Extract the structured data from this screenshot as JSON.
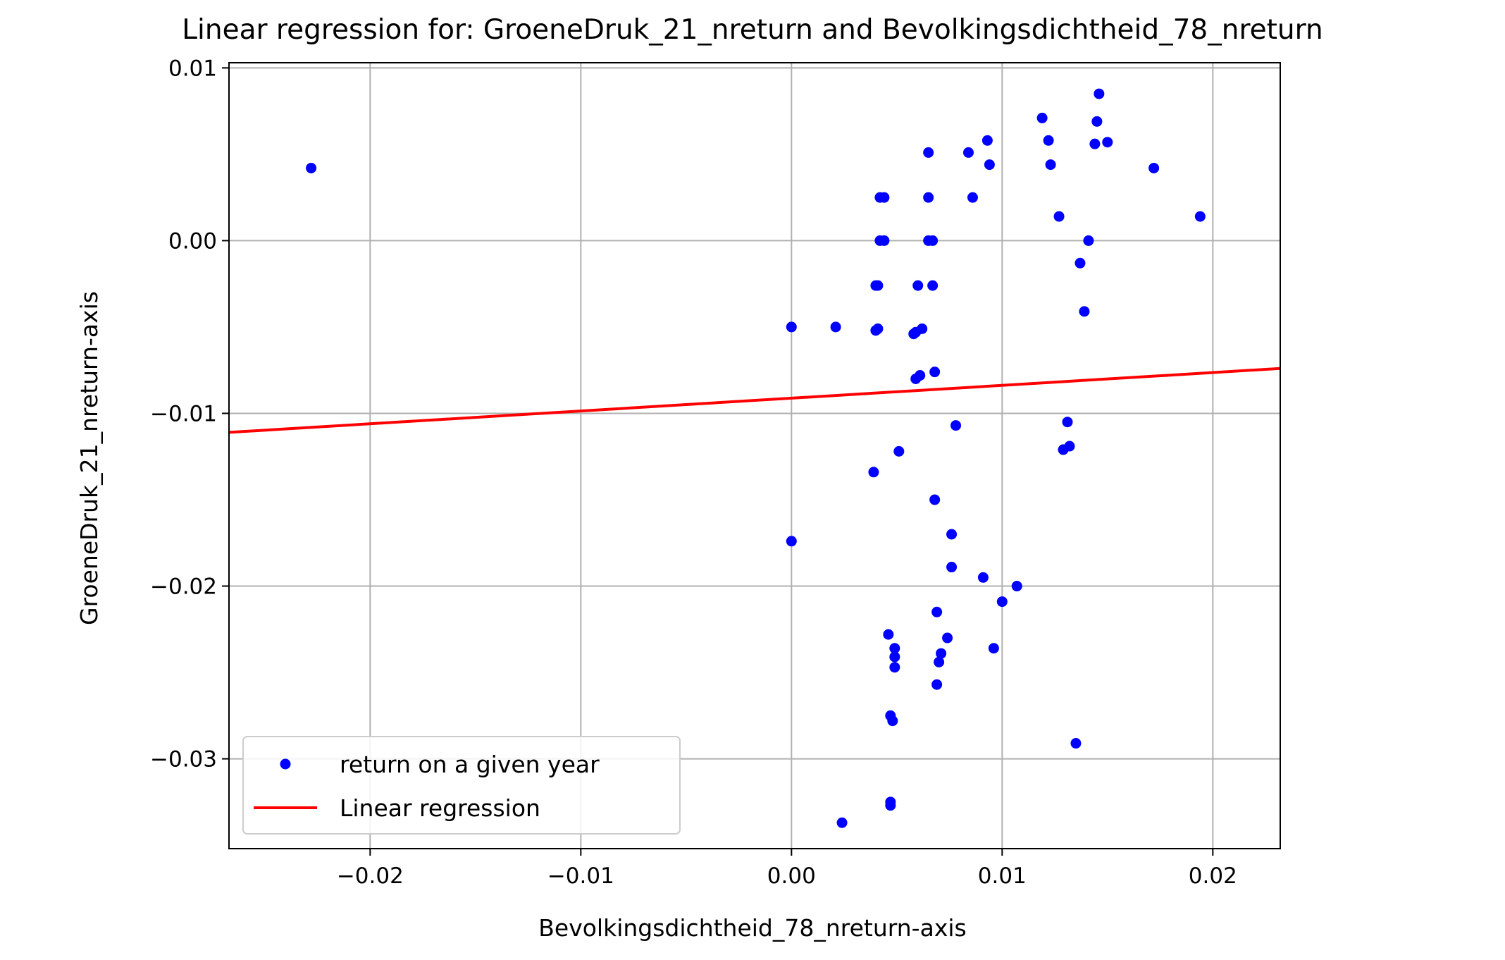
{
  "chart_data": {
    "type": "scatter",
    "title": "Linear regression for: GroeneDruk_21_nreturn and Bevolkingsdichtheid_78_nreturn",
    "xlabel": "Bevolkingsdichtheid_78_nreturn-axis",
    "ylabel": "GroeneDruk_21_nreturn-axis",
    "xlim": [
      -0.0267,
      0.0232
    ],
    "ylim": [
      -0.0352,
      0.0103
    ],
    "xticks": [
      -0.02,
      -0.01,
      0.0,
      0.01,
      0.02
    ],
    "xtick_labels": [
      "−0.02",
      "−0.01",
      "0.00",
      "0.01",
      "0.02"
    ],
    "yticks": [
      -0.03,
      -0.02,
      -0.01,
      0.0,
      0.01
    ],
    "ytick_labels": [
      "−0.03",
      "−0.02",
      "−0.01",
      "0.00",
      "0.01"
    ],
    "grid": true,
    "legend_position": "lower-left",
    "series": [
      {
        "name": "return on a given year",
        "kind": "scatter",
        "color": "#0000ff",
        "points": [
          [
            -0.0228,
            0.0042
          ],
          [
            0.0,
            -0.005
          ],
          [
            0.0,
            -0.0174
          ],
          [
            0.0021,
            -0.005
          ],
          [
            0.0024,
            -0.0337
          ],
          [
            0.0039,
            -0.0134
          ],
          [
            0.004,
            -0.0026
          ],
          [
            0.0041,
            -0.0026
          ],
          [
            0.004,
            -0.0052
          ],
          [
            0.0041,
            -0.0051
          ],
          [
            0.0042,
            0.0025
          ],
          [
            0.0044,
            0.0025
          ],
          [
            0.0042,
            0.0
          ],
          [
            0.0044,
            0.0
          ],
          [
            0.0046,
            -0.0228
          ],
          [
            0.0047,
            -0.0275
          ],
          [
            0.0048,
            -0.0278
          ],
          [
            0.0047,
            -0.0325
          ],
          [
            0.0047,
            -0.0327
          ],
          [
            0.0049,
            -0.0236
          ],
          [
            0.0049,
            -0.0241
          ],
          [
            0.0049,
            -0.0247
          ],
          [
            0.0051,
            -0.0122
          ],
          [
            0.0058,
            -0.0054
          ],
          [
            0.0059,
            -0.0053
          ],
          [
            0.0059,
            -0.008
          ],
          [
            0.006,
            -0.0026
          ],
          [
            0.0061,
            -0.0078
          ],
          [
            0.0062,
            -0.0051
          ],
          [
            0.0065,
            0.0051
          ],
          [
            0.0065,
            0.0025
          ],
          [
            0.0065,
            0.0
          ],
          [
            0.0067,
            0.0
          ],
          [
            0.0067,
            -0.0026
          ],
          [
            0.0068,
            -0.0076
          ],
          [
            0.0068,
            -0.015
          ],
          [
            0.0069,
            -0.0215
          ],
          [
            0.0069,
            -0.0257
          ],
          [
            0.007,
            -0.0244
          ],
          [
            0.0071,
            -0.0239
          ],
          [
            0.0074,
            -0.023
          ],
          [
            0.0076,
            -0.0189
          ],
          [
            0.0076,
            -0.017
          ],
          [
            0.0078,
            -0.0107
          ],
          [
            0.0084,
            0.0051
          ],
          [
            0.0086,
            0.0025
          ],
          [
            0.0091,
            -0.0195
          ],
          [
            0.0093,
            0.0058
          ],
          [
            0.0094,
            0.0044
          ],
          [
            0.0096,
            -0.0236
          ],
          [
            0.01,
            -0.0209
          ],
          [
            0.0107,
            -0.02
          ],
          [
            0.0119,
            0.0071
          ],
          [
            0.0122,
            0.0058
          ],
          [
            0.0123,
            0.0044
          ],
          [
            0.0127,
            0.0014
          ],
          [
            0.0129,
            -0.0121
          ],
          [
            0.0131,
            -0.0105
          ],
          [
            0.0132,
            -0.0119
          ],
          [
            0.0135,
            -0.0291
          ],
          [
            0.0137,
            -0.0013
          ],
          [
            0.0139,
            -0.0041
          ],
          [
            0.0141,
            0.0
          ],
          [
            0.0144,
            0.0056
          ],
          [
            0.0145,
            0.0069
          ],
          [
            0.0146,
            0.0085
          ],
          [
            0.015,
            0.0057
          ],
          [
            0.0172,
            0.0042
          ],
          [
            0.0194,
            0.0014
          ]
        ]
      },
      {
        "name": "Linear regression",
        "kind": "line",
        "color": "#ff0000",
        "x": [
          -0.0267,
          0.0232
        ],
        "y": [
          -0.0111,
          -0.0074
        ]
      }
    ]
  }
}
